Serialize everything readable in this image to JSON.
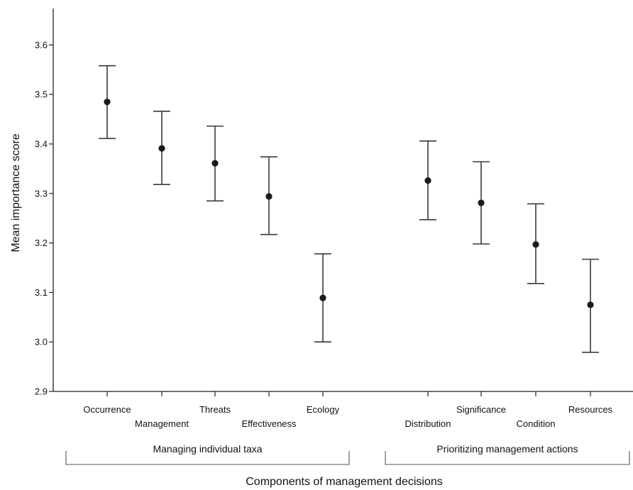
{
  "chart_data": {
    "type": "scatter",
    "subtype": "error-bar",
    "title": "",
    "xlabel": "Components of management decisions",
    "ylabel": "Mean importance score",
    "ylim": [
      2.9,
      3.6
    ],
    "yticks": [
      "2.9",
      "3.0",
      "3.1",
      "3.2",
      "3.3",
      "3.4",
      "3.5",
      "3.6"
    ],
    "grid": false,
    "legend": "none",
    "groups": [
      {
        "label": "Managing individual taxa",
        "categories": [
          "Occurrence",
          "Management",
          "Threats",
          "Effectiveness",
          "Ecology"
        ],
        "means": [
          3.485,
          3.391,
          3.361,
          3.294,
          3.089
        ],
        "upper": [
          3.558,
          3.466,
          3.436,
          3.374,
          3.178
        ],
        "lower": [
          3.411,
          3.318,
          3.285,
          3.217,
          3.0
        ]
      },
      {
        "label": "Prioritizing management actions",
        "categories": [
          "Distribution",
          "Significance",
          "Condition",
          "Resources"
        ],
        "means": [
          3.326,
          3.281,
          3.197,
          3.075
        ],
        "upper": [
          3.406,
          3.364,
          3.279,
          3.167
        ],
        "lower": [
          3.247,
          3.198,
          3.118,
          2.979
        ]
      }
    ],
    "colors": {
      "marker": "#1a1a1a",
      "errorbar": "#3a3a3a",
      "axis": "#222222"
    }
  }
}
